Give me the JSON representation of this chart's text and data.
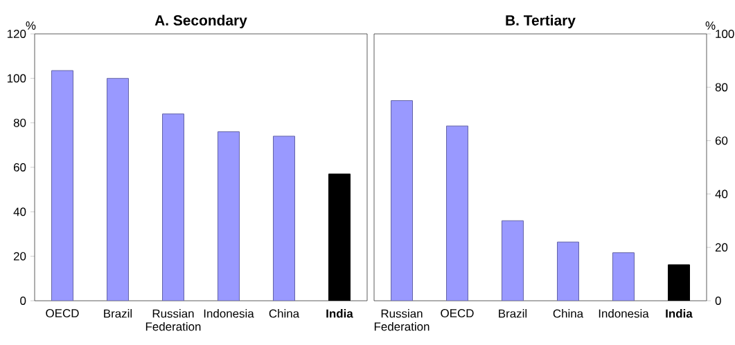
{
  "chart_data": [
    {
      "type": "bar",
      "title": "A. Secondary",
      "ylabel": "%",
      "categories": [
        "OECD",
        "Brazil",
        "Russian Federation",
        "Indonesia",
        "China",
        "**India**"
      ],
      "series": [
        {
          "values": [
            103.5,
            100,
            84,
            76,
            74,
            57
          ]
        }
      ],
      "colors": [
        "#9999ff",
        "#9999ff",
        "#9999ff",
        "#9999ff",
        "#9999ff",
        "#000000"
      ],
      "ylim": [
        0,
        120
      ],
      "yticks": [
        0,
        20,
        40,
        60,
        80,
        100,
        120
      ]
    },
    {
      "type": "bar",
      "title": "B. Tertiary",
      "y2label": "%",
      "categories": [
        "Russian Federation",
        "OECD",
        "Brazil",
        "China",
        "Indonesia",
        "**India**"
      ],
      "series": [
        {
          "values": [
            75,
            65.5,
            30,
            22,
            18,
            13.5
          ],
          "axis": "y2"
        }
      ],
      "colors": [
        "#9999ff",
        "#9999ff",
        "#9999ff",
        "#9999ff",
        "#9999ff",
        "#000000"
      ],
      "y2lim": [
        0,
        100
      ],
      "y2ticks": [
        0,
        20,
        40,
        60,
        80,
        100
      ]
    }
  ]
}
